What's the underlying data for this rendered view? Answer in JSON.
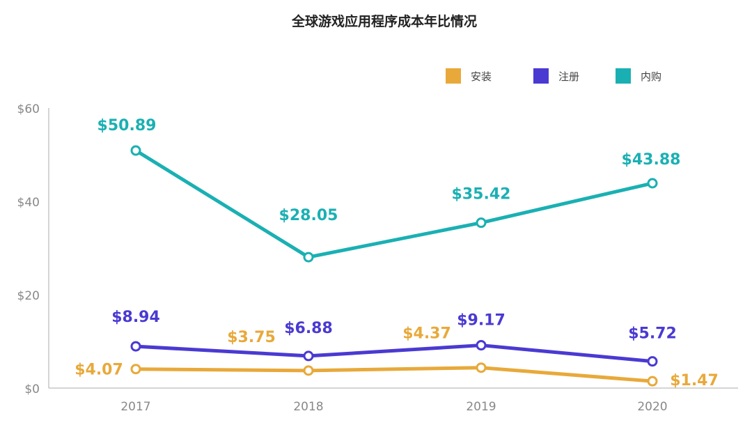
{
  "chart_data": {
    "type": "line",
    "title": "全球游戏应用程序成本年比情况",
    "categories": [
      "2017",
      "2018",
      "2019",
      "2020"
    ],
    "ylim": [
      0,
      60
    ],
    "yticks": [
      0,
      20,
      40,
      60
    ],
    "ytick_labels": [
      "$0",
      "$20",
      "$40",
      "$60"
    ],
    "legend_position": "top-right",
    "series": [
      {
        "name": "安装",
        "color": "#E8A93A",
        "values": [
          4.07,
          3.75,
          4.37,
          1.47
        ],
        "labels": [
          "$4.07",
          "$3.75",
          "$4.37",
          "$1.47"
        ]
      },
      {
        "name": "注册",
        "color": "#4A3AD2",
        "values": [
          8.94,
          6.88,
          9.17,
          5.72
        ],
        "labels": [
          "$8.94",
          "$6.88",
          "$9.17",
          "$5.72"
        ]
      },
      {
        "name": "内购",
        "color": "#1AB0B3",
        "values": [
          50.89,
          28.05,
          35.42,
          43.88
        ],
        "labels": [
          "$50.89",
          "$28.05",
          "$35.42",
          "$43.88"
        ]
      }
    ]
  }
}
